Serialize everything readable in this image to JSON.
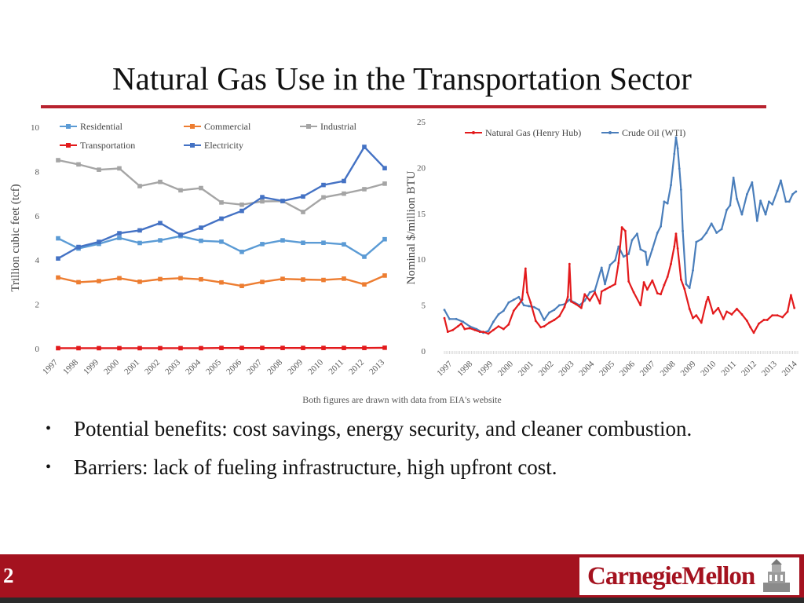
{
  "slide": {
    "title": "Natural Gas Use in the Transportation Sector",
    "caption": "Both figures are drawn with data from EIA's website",
    "bullets": [
      "Potential benefits: cost savings, energy security, and cleaner combustion.",
      "Barriers: lack of fueling infrastructure, high upfront cost."
    ],
    "bullet_marker": "•",
    "page_number": "2",
    "brand": "CarnegieMellon"
  },
  "colors": {
    "accent": "#b8232f",
    "footer": "#a4121f",
    "residential": "#5b9bd5",
    "commercial": "#ed7d31",
    "industrial": "#a5a5a5",
    "transportation": "#e31a1c",
    "electricity": "#4472c4",
    "natural_gas": "#e31a1c",
    "crude_oil": "#4a7ebb"
  },
  "chart_data": [
    {
      "type": "line",
      "ylabel": "Trillion cubic feet (tcf)",
      "xlabel": "",
      "x": [
        "1997",
        "1998",
        "1999",
        "2000",
        "2001",
        "2002",
        "2003",
        "2004",
        "2005",
        "2006",
        "2007",
        "2008",
        "2009",
        "2010",
        "2011",
        "2012",
        "2013"
      ],
      "ylim": [
        0,
        10
      ],
      "yticks": [
        "0",
        "2",
        "4",
        "6",
        "8",
        "10"
      ],
      "grid": false,
      "legend_position": "top",
      "series": [
        {
          "name": "Residential",
          "color_key": "residential",
          "values": [
            4.98,
            4.52,
            4.73,
            5.0,
            4.77,
            4.89,
            5.08,
            4.87,
            4.83,
            4.37,
            4.72,
            4.89,
            4.78,
            4.78,
            4.71,
            4.15,
            4.94
          ]
        },
        {
          "name": "Commercial",
          "color_key": "commercial",
          "values": [
            3.21,
            3.0,
            3.05,
            3.18,
            3.02,
            3.14,
            3.18,
            3.13,
            2.99,
            2.83,
            3.01,
            3.15,
            3.12,
            3.1,
            3.16,
            2.9,
            3.3
          ]
        },
        {
          "name": "Industrial",
          "color_key": "industrial",
          "values": [
            8.51,
            8.32,
            8.08,
            8.14,
            7.34,
            7.53,
            7.15,
            7.25,
            6.6,
            6.5,
            6.65,
            6.66,
            6.17,
            6.83,
            7.0,
            7.2,
            7.45
          ]
        },
        {
          "name": "Transportation",
          "color_key": "transportation",
          "values": [
            0.02,
            0.02,
            0.02,
            0.02,
            0.02,
            0.02,
            0.02,
            0.02,
            0.03,
            0.03,
            0.03,
            0.03,
            0.03,
            0.03,
            0.03,
            0.03,
            0.04
          ]
        },
        {
          "name": "Electricity",
          "color_key": "electricity",
          "values": [
            4.07,
            4.59,
            4.82,
            5.21,
            5.34,
            5.67,
            5.14,
            5.46,
            5.87,
            6.22,
            6.84,
            6.67,
            6.87,
            7.39,
            7.57,
            9.11,
            8.15
          ]
        }
      ]
    },
    {
      "type": "line",
      "ylabel": "Nominal $/million BTU",
      "xlabel": "",
      "x_axis": "monthly, 1997–2014",
      "x": [
        "1997",
        "1998",
        "1999",
        "2000",
        "2001",
        "2002",
        "2003",
        "2004",
        "2005",
        "2006",
        "2007",
        "2008",
        "2009",
        "2010",
        "2011",
        "2012",
        "2013",
        "2014"
      ],
      "ylim": [
        0,
        25
      ],
      "yticks": [
        "0",
        "5",
        "10",
        "15",
        "20",
        "25"
      ],
      "grid": false,
      "legend_position": "top",
      "series": [
        {
          "name": "Natural Gas (Henry Hub)",
          "color_key": "natural_gas",
          "points": [
            [
              "1997-01",
              3.5
            ],
            [
              "1997-03",
              2.0
            ],
            [
              "1997-06",
              2.2
            ],
            [
              "1997-09",
              2.6
            ],
            [
              "1997-11",
              2.9
            ],
            [
              "1998-01",
              2.3
            ],
            [
              "1998-04",
              2.4
            ],
            [
              "1998-07",
              2.2
            ],
            [
              "1998-10",
              2.0
            ],
            [
              "1998-12",
              2.0
            ],
            [
              "1999-03",
              1.8
            ],
            [
              "1999-06",
              2.2
            ],
            [
              "1999-09",
              2.6
            ],
            [
              "1999-12",
              2.3
            ],
            [
              "2000-03",
              2.8
            ],
            [
              "2000-06",
              4.3
            ],
            [
              "2000-09",
              5.0
            ],
            [
              "2000-11",
              5.5
            ],
            [
              "2001-01",
              8.9
            ],
            [
              "2001-02",
              6.3
            ],
            [
              "2001-04",
              5.2
            ],
            [
              "2001-07",
              3.2
            ],
            [
              "2001-10",
              2.5
            ],
            [
              "2001-12",
              2.6
            ],
            [
              "2002-03",
              3.0
            ],
            [
              "2002-06",
              3.3
            ],
            [
              "2002-09",
              3.7
            ],
            [
              "2002-12",
              4.7
            ],
            [
              "2003-02",
              5.8
            ],
            [
              "2003-03",
              9.4
            ],
            [
              "2003-04",
              5.3
            ],
            [
              "2003-07",
              5.0
            ],
            [
              "2003-10",
              4.6
            ],
            [
              "2003-12",
              6.1
            ],
            [
              "2004-03",
              5.4
            ],
            [
              "2004-06",
              6.3
            ],
            [
              "2004-09",
              5.1
            ],
            [
              "2004-10",
              6.4
            ],
            [
              "2004-12",
              6.6
            ],
            [
              "2005-03",
              6.9
            ],
            [
              "2005-06",
              7.2
            ],
            [
              "2005-08",
              9.5
            ],
            [
              "2005-10",
              13.4
            ],
            [
              "2005-12",
              13.0
            ],
            [
              "2006-02",
              7.5
            ],
            [
              "2006-05",
              6.3
            ],
            [
              "2006-09",
              4.9
            ],
            [
              "2006-11",
              7.4
            ],
            [
              "2007-01",
              6.6
            ],
            [
              "2007-04",
              7.6
            ],
            [
              "2007-07",
              6.2
            ],
            [
              "2007-09",
              6.1
            ],
            [
              "2007-11",
              7.1
            ],
            [
              "2008-01",
              8.0
            ],
            [
              "2008-03",
              9.4
            ],
            [
              "2008-05",
              11.3
            ],
            [
              "2008-06",
              12.7
            ],
            [
              "2008-07",
              11.1
            ],
            [
              "2008-09",
              7.7
            ],
            [
              "2008-11",
              6.7
            ],
            [
              "2009-02",
              4.5
            ],
            [
              "2009-04",
              3.5
            ],
            [
              "2009-06",
              3.8
            ],
            [
              "2009-09",
              3.0
            ],
            [
              "2009-12",
              5.3
            ],
            [
              "2010-01",
              5.8
            ],
            [
              "2010-04",
              4.0
            ],
            [
              "2010-07",
              4.6
            ],
            [
              "2010-10",
              3.4
            ],
            [
              "2010-12",
              4.2
            ],
            [
              "2011-03",
              3.9
            ],
            [
              "2011-06",
              4.5
            ],
            [
              "2011-09",
              3.9
            ],
            [
              "2011-12",
              3.2
            ],
            [
              "2012-02",
              2.5
            ],
            [
              "2012-04",
              1.9
            ],
            [
              "2012-07",
              2.9
            ],
            [
              "2012-10",
              3.3
            ],
            [
              "2012-12",
              3.3
            ],
            [
              "2013-03",
              3.8
            ],
            [
              "2013-06",
              3.8
            ],
            [
              "2013-09",
              3.6
            ],
            [
              "2013-12",
              4.2
            ],
            [
              "2014-02",
              6.0
            ],
            [
              "2014-04",
              4.6
            ]
          ]
        },
        {
          "name": "Crude Oil (WTI)",
          "color_key": "crude_oil",
          "points": [
            [
              "1997-01",
              4.4
            ],
            [
              "1997-04",
              3.4
            ],
            [
              "1997-08",
              3.4
            ],
            [
              "1997-12",
              3.1
            ],
            [
              "1998-04",
              2.6
            ],
            [
              "1998-08",
              2.3
            ],
            [
              "1998-12",
              1.9
            ],
            [
              "1999-03",
              2.1
            ],
            [
              "1999-06",
              3.1
            ],
            [
              "1999-09",
              3.9
            ],
            [
              "1999-12",
              4.3
            ],
            [
              "2000-03",
              5.2
            ],
            [
              "2000-06",
              5.5
            ],
            [
              "2000-09",
              5.8
            ],
            [
              "2000-12",
              4.9
            ],
            [
              "2001-03",
              4.8
            ],
            [
              "2001-06",
              4.7
            ],
            [
              "2001-09",
              4.4
            ],
            [
              "2001-12",
              3.3
            ],
            [
              "2002-03",
              4.1
            ],
            [
              "2002-06",
              4.4
            ],
            [
              "2002-09",
              4.9
            ],
            [
              "2002-12",
              5.0
            ],
            [
              "2003-03",
              5.5
            ],
            [
              "2003-06",
              5.2
            ],
            [
              "2003-09",
              4.9
            ],
            [
              "2003-12",
              5.4
            ],
            [
              "2004-03",
              6.3
            ],
            [
              "2004-06",
              6.5
            ],
            [
              "2004-10",
              9.0
            ],
            [
              "2004-12",
              7.2
            ],
            [
              "2005-03",
              9.3
            ],
            [
              "2005-06",
              9.8
            ],
            [
              "2005-08",
              11.3
            ],
            [
              "2005-11",
              10.2
            ],
            [
              "2006-02",
              10.5
            ],
            [
              "2006-04",
              12.0
            ],
            [
              "2006-07",
              12.7
            ],
            [
              "2006-09",
              11.0
            ],
            [
              "2006-12",
              10.7
            ],
            [
              "2007-01",
              9.3
            ],
            [
              "2007-04",
              11.0
            ],
            [
              "2007-07",
              12.8
            ],
            [
              "2007-09",
              13.5
            ],
            [
              "2007-11",
              16.2
            ],
            [
              "2008-01",
              16.0
            ],
            [
              "2008-03",
              18.0
            ],
            [
              "2008-05",
              21.4
            ],
            [
              "2008-06",
              23.2
            ],
            [
              "2008-07",
              22.0
            ],
            [
              "2008-08",
              19.8
            ],
            [
              "2008-09",
              17.5
            ],
            [
              "2008-10",
              13.0
            ],
            [
              "2008-12",
              7.2
            ],
            [
              "2009-02",
              6.8
            ],
            [
              "2009-04",
              8.7
            ],
            [
              "2009-06",
              11.8
            ],
            [
              "2009-09",
              12.1
            ],
            [
              "2009-12",
              12.8
            ],
            [
              "2010-03",
              13.8
            ],
            [
              "2010-06",
              12.8
            ],
            [
              "2010-09",
              13.2
            ],
            [
              "2010-12",
              15.3
            ],
            [
              "2011-02",
              15.8
            ],
            [
              "2011-04",
              18.8
            ],
            [
              "2011-06",
              16.5
            ],
            [
              "2011-09",
              14.8
            ],
            [
              "2011-12",
              17.0
            ],
            [
              "2012-03",
              18.3
            ],
            [
              "2012-06",
              14.1
            ],
            [
              "2012-08",
              16.3
            ],
            [
              "2012-11",
              14.8
            ],
            [
              "2013-01",
              16.2
            ],
            [
              "2013-03",
              15.9
            ],
            [
              "2013-06",
              17.4
            ],
            [
              "2013-08",
              18.5
            ],
            [
              "2013-11",
              16.2
            ],
            [
              "2014-01",
              16.2
            ],
            [
              "2014-03",
              17.0
            ],
            [
              "2014-05",
              17.3
            ]
          ]
        }
      ]
    }
  ]
}
